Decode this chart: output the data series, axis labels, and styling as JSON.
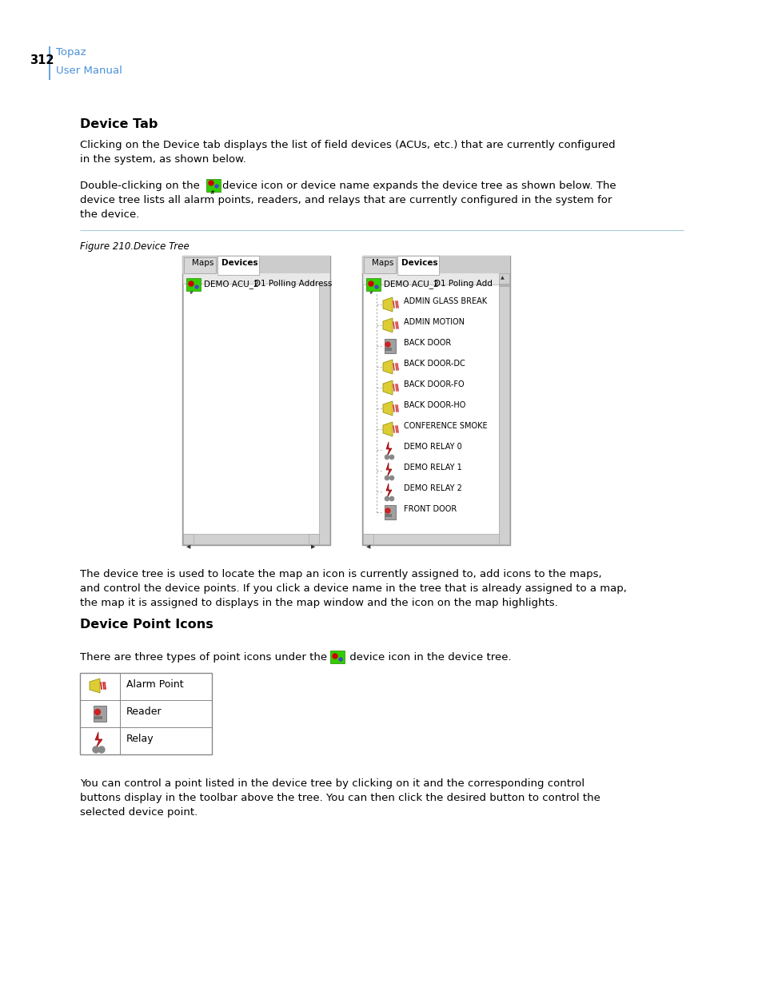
{
  "page_number": "312",
  "header_text1": "Topaz",
  "header_text2": "User Manual",
  "header_color": "#4a90d9",
  "section_title": "Device Tab",
  "para1_line1": "Clicking on the Device tab displays the list of field devices (ACUs, etc.) that are currently configured",
  "para1_line2": "in the system, as shown below.",
  "para2_pre": "Double-clicking on the ",
  "para2_post": "device icon or device name expands the device tree as shown below. The",
  "para2_line2": "device tree lists all alarm points, readers, and relays that are currently configured in the system for",
  "para2_line3": "the device.",
  "figure_caption": "Figure 210.Device Tree",
  "para3_line1": "The device tree is used to locate the map an icon is currently assigned to, add icons to the maps,",
  "para3_line2": "and control the device points. If you click a device name in the tree that is already assigned to a map,",
  "para3_line3": "the map it is assigned to displays in the map window and the icon on the map highlights.",
  "section_title2": "Device Point Icons",
  "para4_pre": "There are three types of point icons under the ",
  "para4_post": " device icon in the device tree.",
  "table_rows": [
    "Alarm Point",
    "Reader",
    "Relay"
  ],
  "para5_line1": "You can control a point listed in the device tree by clicking on it and the corresponding control",
  "para5_line2": "buttons display in the toolbar above the tree. You can then click the desired button to control the",
  "para5_line3": "selected device point.",
  "bg_color": "#ffffff",
  "text_color": "#000000",
  "header_color2": "#4a90d9",
  "figure_line_color": "#aaccdd",
  "left_panel_label": "Maps",
  "left_panel_tab": "Devices",
  "left_panel_row": "DEMO ACU_2",
  "left_panel_col": "D1 Polling Address",
  "right_panel_label": "Maps",
  "right_panel_tab": "Devices",
  "right_panel_row": "DEMO ACU_2",
  "right_panel_col": "D1 Poling Add",
  "right_panel_items": [
    "ADMIN GLASS BREAK",
    "ADMIN MOTION",
    "BACK DOOR",
    "BACK DOOR-DC",
    "BACK DOOR-FO",
    "BACK DOOR-HO",
    "CONFERENCE SMOKE",
    "DEMO RELAY 0",
    "DEMO RELAY 1",
    "DEMO RELAY 2",
    "FRONT DOOR"
  ],
  "right_panel_item_types": [
    "alarm",
    "alarm",
    "reader",
    "alarm",
    "alarm",
    "alarm",
    "alarm",
    "relay",
    "relay",
    "relay",
    "reader"
  ]
}
